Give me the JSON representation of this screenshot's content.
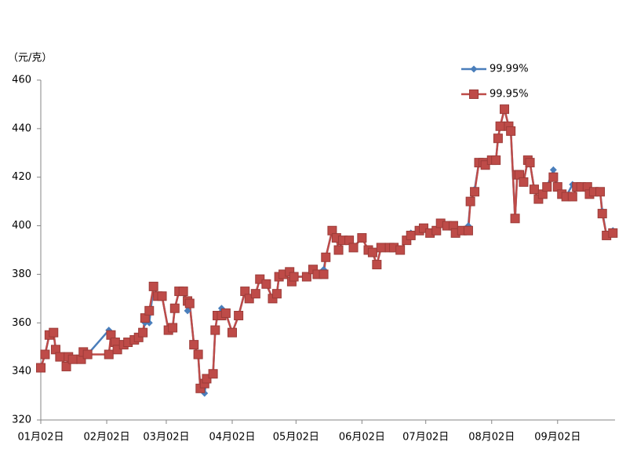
{
  "chart_data": {
    "type": "line",
    "y_label": "（元/克）",
    "x": [
      0,
      2,
      4,
      6,
      7,
      9,
      12,
      13,
      15,
      19,
      20,
      22,
      32,
      33,
      35,
      36,
      39,
      41,
      44,
      46,
      48,
      49,
      51,
      53,
      55,
      57,
      60,
      62,
      63,
      65,
      67,
      69,
      70,
      72,
      74,
      75,
      77,
      78,
      81,
      82,
      83,
      85,
      87,
      90,
      93,
      96,
      98,
      101,
      103,
      106,
      109,
      111,
      112,
      114,
      117,
      118,
      119,
      125,
      128,
      130,
      133,
      134,
      137,
      139,
      140,
      142,
      145,
      147,
      151,
      154,
      156,
      158,
      160,
      164,
      166,
      169,
      172,
      174,
      178,
      180,
      183,
      186,
      188,
      191,
      194,
      195,
      198,
      201,
      202,
      204,
      206,
      208,
      209,
      212,
      214,
      215,
      216,
      218,
      220,
      221,
      223,
      224,
      225,
      227,
      229,
      230,
      232,
      234,
      236,
      238,
      241,
      243,
      245,
      247,
      250,
      252,
      254,
      257,
      258,
      260,
      263,
      264,
      266,
      269
    ],
    "series": [
      {
        "name": "99.99%",
        "color": "#4a7ebb",
        "marker": "diamond",
        "values": [
          341.5,
          347,
          355,
          356,
          349,
          346,
          342,
          346,
          345,
          345,
          348,
          347,
          357,
          355,
          352,
          349,
          351,
          352,
          353,
          354,
          356,
          360,
          360,
          375,
          371,
          371,
          357,
          358,
          366,
          373,
          373,
          365,
          368,
          351,
          347,
          333,
          331,
          337,
          339,
          357,
          363,
          366,
          364,
          356,
          363,
          373,
          370,
          372,
          378,
          376,
          370,
          372,
          379,
          380,
          381,
          377,
          379,
          379,
          382,
          380,
          382,
          387,
          398,
          395,
          390,
          394,
          394,
          391,
          395,
          390,
          389,
          384,
          391,
          391,
          391,
          390,
          394,
          397,
          398,
          399,
          397,
          398,
          401,
          400,
          400,
          397,
          398,
          400,
          410,
          415,
          426,
          426,
          425,
          427,
          427,
          436,
          441,
          448,
          441,
          439,
          403,
          421,
          421,
          418,
          427,
          426,
          415,
          411,
          413,
          416,
          423,
          416,
          413,
          412,
          417,
          416,
          416,
          416,
          413,
          414,
          414,
          406,
          396,
          398
        ]
      },
      {
        "name": "99.95%",
        "color": "#be4b48",
        "marker": "square",
        "values": [
          341.5,
          347,
          355,
          356,
          349,
          346,
          342,
          346,
          345,
          345,
          348,
          347,
          347,
          355,
          352,
          349,
          351,
          352,
          353,
          354,
          356,
          362,
          365,
          375,
          371,
          371,
          357,
          358,
          366,
          373,
          373,
          369,
          368,
          351,
          347,
          333,
          335,
          337,
          339,
          357,
          363,
          363,
          364,
          356,
          363,
          373,
          370,
          372,
          378,
          376,
          370,
          372,
          379,
          380,
          381,
          377,
          379,
          379,
          382,
          380,
          380,
          387,
          398,
          395,
          390,
          394,
          394,
          391,
          395,
          390,
          389,
          384,
          391,
          391,
          391,
          390,
          394,
          396,
          398,
          399,
          397,
          398,
          401,
          400,
          400,
          397,
          398,
          398,
          410,
          414,
          426,
          426,
          425,
          427,
          427,
          436,
          441,
          448,
          441,
          439,
          403,
          421,
          421,
          418,
          427,
          426,
          415,
          411,
          413,
          416,
          420,
          416,
          413,
          412,
          412,
          416,
          416,
          416,
          413,
          414,
          414,
          405,
          396,
          397
        ]
      }
    ],
    "xlim": [
      0,
      270
    ],
    "xticks": [
      {
        "value": 0,
        "label": "01月02日"
      },
      {
        "value": 31,
        "label": "02月02日"
      },
      {
        "value": 59,
        "label": "03月02日"
      },
      {
        "value": 90,
        "label": "04月02日"
      },
      {
        "value": 120,
        "label": "05月02日"
      },
      {
        "value": 151,
        "label": "06月02日"
      },
      {
        "value": 181,
        "label": "07月02日"
      },
      {
        "value": 212,
        "label": "08月02日"
      },
      {
        "value": 243,
        "label": "09月02日"
      }
    ],
    "ylim": [
      320,
      460
    ],
    "yticks": [
      320,
      340,
      360,
      380,
      400,
      420,
      440,
      460
    ],
    "grid": false,
    "legend": "top-right"
  }
}
